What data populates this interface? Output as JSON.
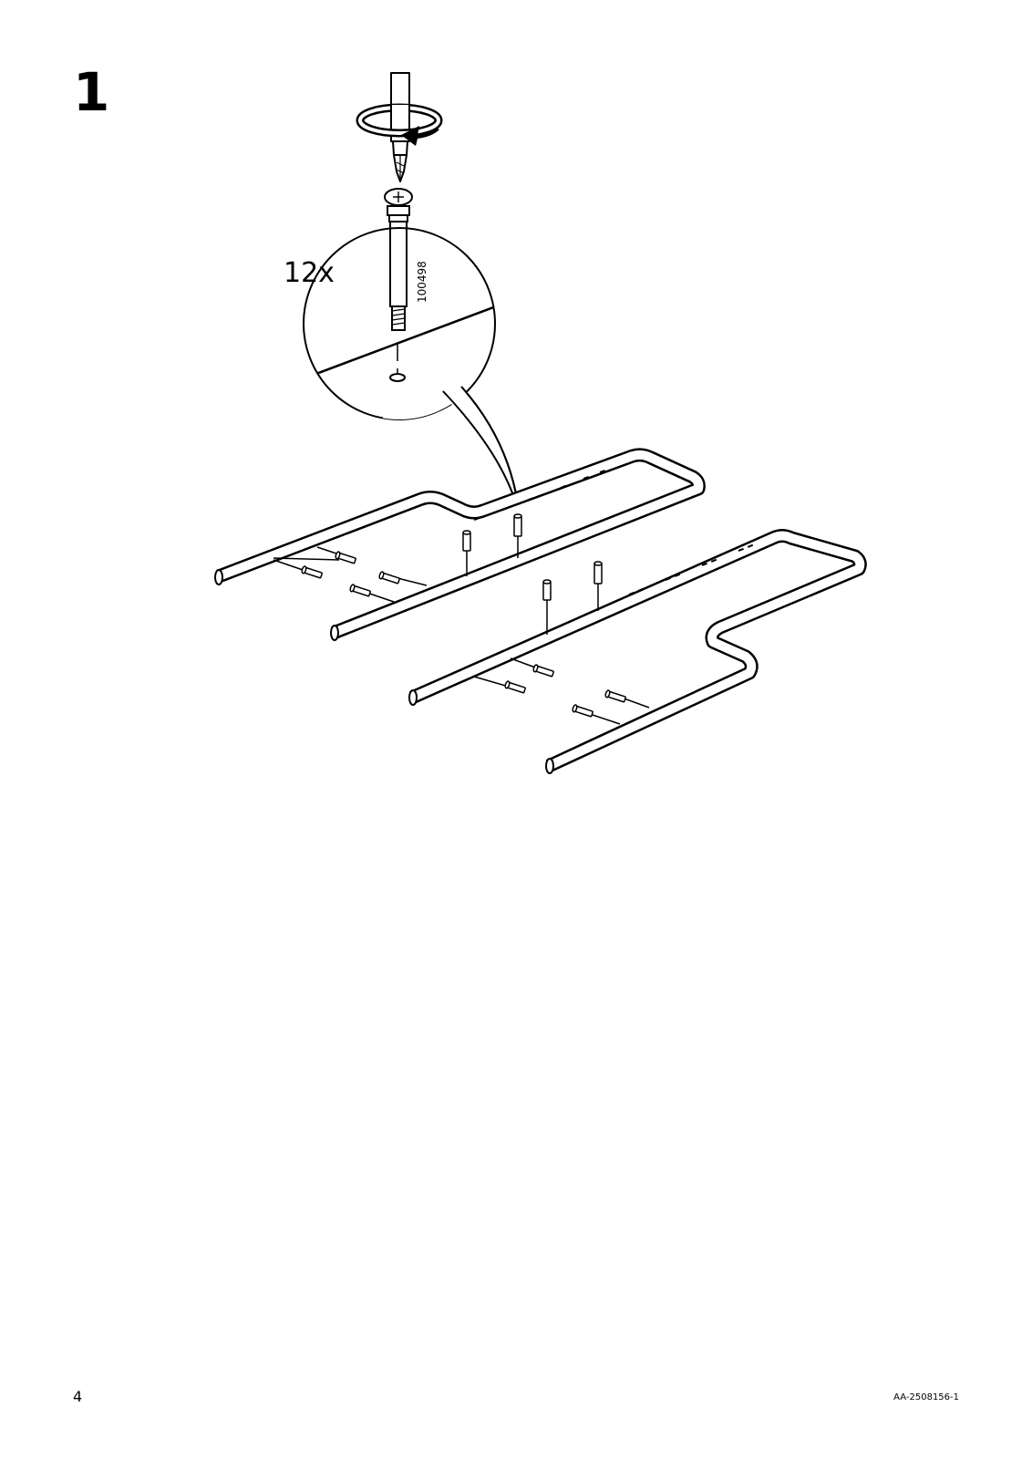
{
  "step": {
    "number": "1"
  },
  "detail": {
    "quantity": "12x",
    "part_number": "100498"
  },
  "footer": {
    "page_number": "4",
    "document_code": "AA-2508156-1"
  },
  "icons": {
    "tool": "phillips-screwdriver-icon",
    "rotation": "clockwise-rotation-arrow-icon",
    "fastener": "screw-bolt-icon"
  },
  "colors": {
    "ink": "#000000",
    "paper": "#ffffff"
  }
}
